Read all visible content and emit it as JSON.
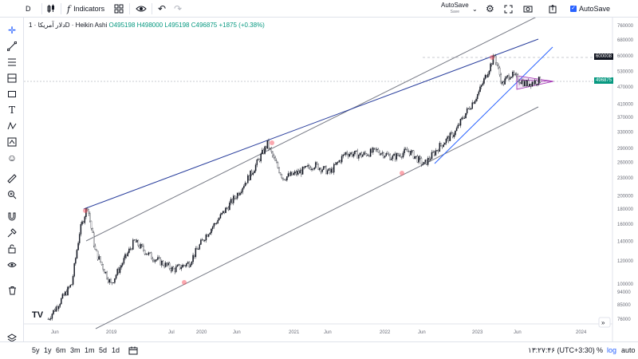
{
  "toolbar": {
    "interval": "D",
    "indicators_label": "Indicators",
    "autosave_title": "AutoSave",
    "autosave_sub": "Save",
    "autosave_checkbox_label": "AutoSave"
  },
  "legend": {
    "symbol": "دلار آمریکا · 1D · Heikin Ashi",
    "o": "O495198",
    "h": "H498000",
    "l": "L495198",
    "c": "C496875",
    "change": "+1875 (+0.38%)"
  },
  "price_axis": {
    "labels": [
      "760000",
      "680000",
      "600000",
      "530000",
      "470000",
      "410000",
      "370000",
      "330000",
      "290000",
      "260000",
      "230000",
      "200000",
      "180000",
      "160000",
      "140000",
      "120000",
      "100000",
      "94000",
      "85000",
      "76000"
    ],
    "current_price": "496875",
    "high_marker": "600008",
    "current_color": "#089981",
    "marker_color": "#131722"
  },
  "time_axis": {
    "labels": [
      "Jun",
      "2019",
      "Jul",
      "2020",
      "Jun",
      "2021",
      "Jun",
      "2022",
      "Jun",
      "2023",
      "Jun",
      "2024"
    ]
  },
  "bottom": {
    "ranges": [
      "5y",
      "1y",
      "6m",
      "3m",
      "1m",
      "5d",
      "1d"
    ],
    "clock": "۱۳:۲۷:۴۶ (UTC+3:30)",
    "pct": "%",
    "log": "log",
    "auto": "auto"
  },
  "tools": [
    "crosshair-icon",
    "trend-line-icon",
    "fib-icon",
    "pattern-icon",
    "rectangle-icon",
    "text-icon",
    "xabcd-icon",
    "measure-icon",
    "emoji-icon",
    "ruler-icon",
    "zoom-in-icon",
    "magnet-icon",
    "lock-drawing-icon",
    "lock-icon",
    "eye-icon",
    "trash-icon"
  ],
  "chart_data": {
    "type": "candlestick",
    "style": "Heikin Ashi",
    "interval": "1D",
    "y_scale": "log",
    "ylim": [
      76000,
      760000
    ],
    "series": [
      {
        "x": [
          "2018-05",
          "2018-08",
          "2018-09",
          "2018-10",
          "2018-11",
          "2019-01",
          "2019-04",
          "2019-06",
          "2019-09",
          "2019-11",
          "2020-01",
          "2020-03",
          "2020-05",
          "2020-07",
          "2020-09",
          "2020-10",
          "2020-11",
          "2021-01",
          "2021-03",
          "2021-05",
          "2021-07",
          "2021-09",
          "2021-11",
          "2022-01",
          "2022-03",
          "2022-05",
          "2022-07",
          "2022-09",
          "2022-10",
          "2022-12",
          "2023-02",
          "2023-03",
          "2023-04",
          "2023-06",
          "2023-08"
        ],
        "y": [
          76000,
          100000,
          150000,
          185000,
          130000,
          100000,
          140000,
          125000,
          112000,
          118000,
          145000,
          170000,
          200000,
          240000,
          300000,
          260000,
          230000,
          240000,
          255000,
          240000,
          280000,
          275000,
          285000,
          270000,
          285000,
          255000,
          295000,
          330000,
          370000,
          450000,
          600000,
          480000,
          520000,
          480000,
          496875
        ]
      }
    ],
    "colors": {
      "up": "#089981",
      "down": "#f23645"
    }
  }
}
